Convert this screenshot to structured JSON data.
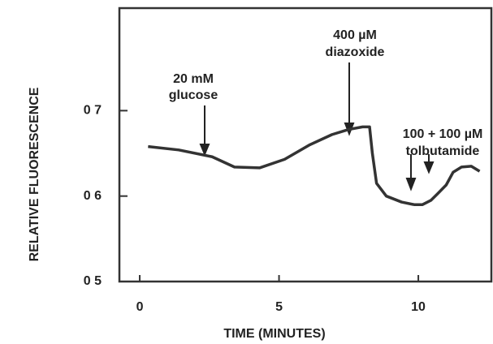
{
  "chart_data": {
    "type": "line",
    "x_label": "TIME (MINUTES)",
    "y_label": "RELATIVE FLUORESCENCE",
    "x": [
      0.3,
      1.4,
      2.6,
      3.4,
      4.3,
      5.2,
      6.1,
      6.9,
      7.5,
      8.0,
      8.25,
      8.35,
      8.5,
      8.85,
      9.4,
      9.85,
      10.15,
      10.45,
      10.7,
      11.0,
      11.25,
      11.55,
      11.9,
      12.2
    ],
    "values": [
      0.658,
      0.654,
      0.646,
      0.634,
      0.633,
      0.643,
      0.66,
      0.672,
      0.678,
      0.681,
      0.681,
      0.65,
      0.615,
      0.6,
      0.593,
      0.59,
      0.59,
      0.595,
      0.603,
      0.613,
      0.628,
      0.634,
      0.635,
      0.629
    ],
    "color": "#333333",
    "xlim": [
      -0.73,
      12.68
    ],
    "ylim": [
      0.5,
      0.82
    ],
    "xticks": [
      0,
      5,
      10
    ],
    "yticks": [
      {
        "value": 0.5,
        "label": "0 5"
      },
      {
        "value": 0.6,
        "label": "0 6"
      },
      {
        "value": 0.7,
        "label": "0 7"
      }
    ],
    "annotations": [
      [
        "20 mM",
        "glucose"
      ],
      [
        "400 µM",
        "diazoxide"
      ],
      [
        "100 + 100 µM",
        "tolbutamide"
      ]
    ]
  }
}
